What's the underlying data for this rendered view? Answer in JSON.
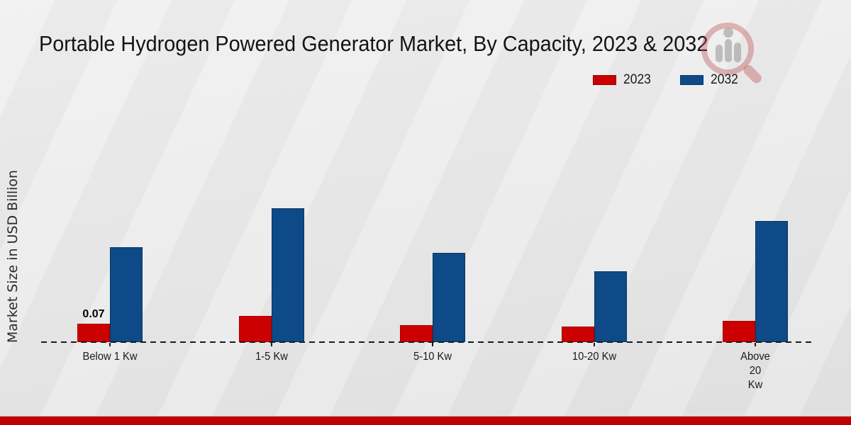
{
  "title": "Portable Hydrogen Powered Generator Market, By Capacity, 2023 & 2032",
  "ylabel": "Market Size in USD Billion",
  "legend": [
    {
      "label": "2023",
      "color": "#cc0000"
    },
    {
      "label": "2032",
      "color": "#0d4a87"
    }
  ],
  "colors": {
    "series_2023": "#cc0000",
    "series_2032": "#0d4a87",
    "footer_stripe": "#c00000",
    "baseline": "#1a1a1a",
    "background": "#e9e9e9"
  },
  "watermark_icon": "magnifier-bar-chart-logo",
  "chart_data": {
    "type": "bar",
    "title": "Portable Hydrogen Powered Generator Market, By Capacity, 2023 & 2032",
    "xlabel": "",
    "ylabel": "Market Size in USD Billion",
    "categories": [
      "Below 1 Kw",
      "1-5 Kw",
      "5-10 Kw",
      "10-20 Kw",
      "Above 20 Kw"
    ],
    "tick_labels": [
      [
        "Below 1 Kw"
      ],
      [
        "1-5 Kw"
      ],
      [
        "5-10 Kw"
      ],
      [
        "10-20 Kw"
      ],
      [
        "Above",
        "20",
        "Kw"
      ]
    ],
    "series": [
      {
        "name": "2023",
        "color": "#cc0000",
        "values": [
          0.07,
          0.1,
          0.065,
          0.06,
          0.08
        ]
      },
      {
        "name": "2032",
        "color": "#0d4a87",
        "values": [
          0.36,
          0.51,
          0.34,
          0.27,
          0.46
        ]
      }
    ],
    "annotations": [
      {
        "series": "2023",
        "category": "Below 1 Kw",
        "text": "0.07"
      }
    ],
    "ylim": [
      0,
      0.55
    ],
    "grid": false,
    "y_axis_ticks_visible": false,
    "baseline_style": "dashed",
    "legend_position": "top-right"
  }
}
